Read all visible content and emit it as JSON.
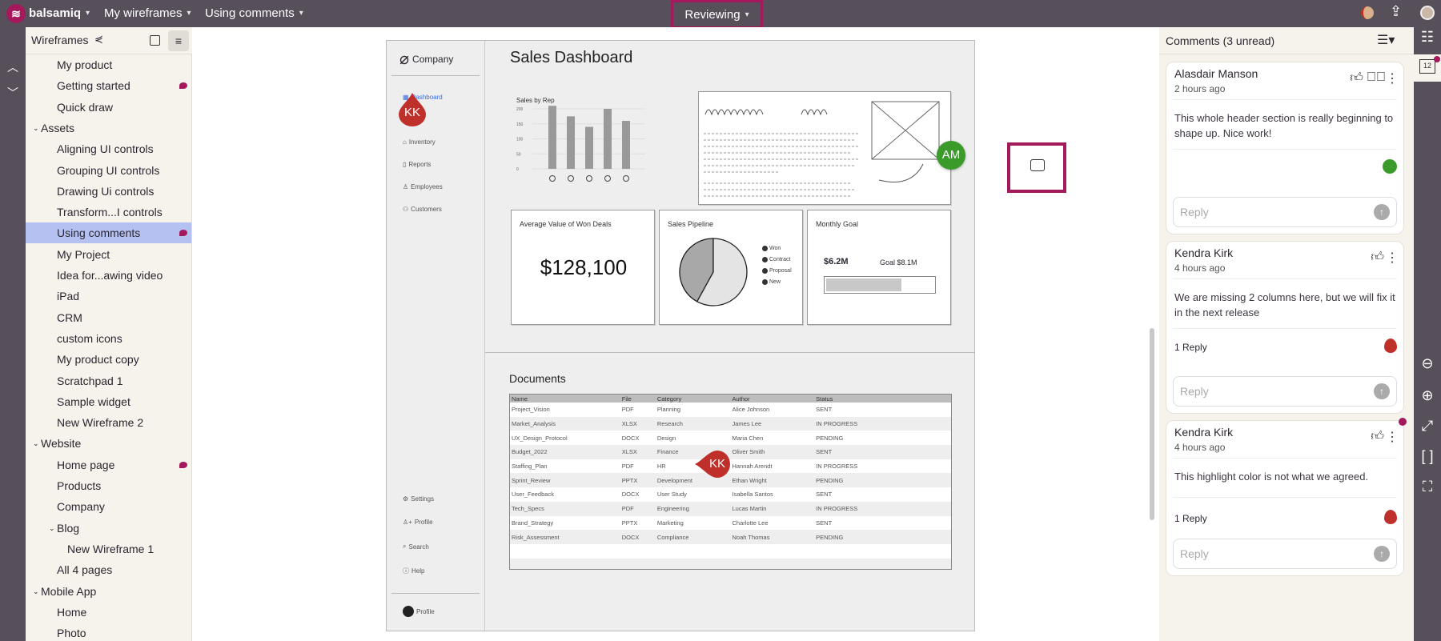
{
  "topbar": {
    "brand": "balsamiq",
    "project": "My wireframes",
    "page": "Using comments",
    "mode": "Reviewing"
  },
  "sidebar": {
    "title": "Wireframes",
    "items": [
      {
        "label": "My product",
        "level": 1
      },
      {
        "label": "Getting started",
        "level": 1,
        "comment": true
      },
      {
        "label": "Quick draw",
        "level": 1
      },
      {
        "label": "Assets",
        "level": 0,
        "group": true
      },
      {
        "label": "Aligning UI controls",
        "level": 1
      },
      {
        "label": "Grouping UI controls",
        "level": 1
      },
      {
        "label": "Drawing Ui controls",
        "level": 1
      },
      {
        "label": "Transform...I controls",
        "level": 1
      },
      {
        "label": "Using comments",
        "level": 1,
        "comment": true,
        "selected": true
      },
      {
        "label": "My Project",
        "level": 1
      },
      {
        "label": "Idea for...awing video",
        "level": 1
      },
      {
        "label": "iPad",
        "level": 1
      },
      {
        "label": "CRM",
        "level": 1
      },
      {
        "label": "custom icons",
        "level": 1
      },
      {
        "label": "My product copy",
        "level": 1
      },
      {
        "label": "Scratchpad 1",
        "level": 1
      },
      {
        "label": "Sample widget",
        "level": 1
      },
      {
        "label": "New Wireframe 2",
        "level": 1
      },
      {
        "label": "Website",
        "level": 0,
        "group": true
      },
      {
        "label": "Home page",
        "level": 1,
        "comment": true
      },
      {
        "label": "Products",
        "level": 1
      },
      {
        "label": "Company",
        "level": 1
      },
      {
        "label": "Blog",
        "level": 1,
        "group": true
      },
      {
        "label": "New Wireframe 1",
        "level": 2
      },
      {
        "label": "All 4 pages",
        "level": 1
      },
      {
        "label": "Mobile App",
        "level": 0,
        "group": true
      },
      {
        "label": "Home",
        "level": 1
      },
      {
        "label": "Photo",
        "level": 1
      }
    ]
  },
  "wireframe": {
    "company": "Company",
    "title": "Sales Dashboard",
    "nav": [
      "Dashboard",
      "Inventory",
      "Reports",
      "Employees",
      "Customers"
    ],
    "nav_bottom": [
      "Settings",
      "Profile",
      "Search",
      "Help"
    ],
    "profile": "Profile",
    "avg_title": "Average Value of Won Deals",
    "avg_value": "$128,100",
    "pipeline_title": "Sales Pipeline",
    "pipeline_legend": [
      "Won",
      "Contract",
      "Proposal",
      "New"
    ],
    "goal_title": "Monthly Goal",
    "goal_current": "$6.2M",
    "goal_target": "Goal $8.1M",
    "goal_progress": 0.7,
    "docs_title": "Documents",
    "docs_columns": [
      "Name",
      "File",
      "Category",
      "Author",
      "Status"
    ],
    "docs_rows": [
      [
        "Project_Vision",
        "PDF",
        "Planning",
        "Alice Johnson",
        "SENT"
      ],
      [
        "Market_Analysis",
        "XLSX",
        "Research",
        "James Lee",
        "IN PROGRESS"
      ],
      [
        "UX_Design_Protocol",
        "DOCX",
        "Design",
        "Maria Chen",
        "PENDING"
      ],
      [
        "Budget_2022",
        "XLSX",
        "Finance",
        "Oliver Smith",
        "SENT"
      ],
      [
        "Staffing_Plan",
        "PDF",
        "HR",
        "Hannah Arendt",
        "IN PROGRESS"
      ],
      [
        "Sprint_Review",
        "PPTX",
        "Development",
        "Ethan Wright",
        "PENDING"
      ],
      [
        "User_Feedback",
        "DOCX",
        "User Study",
        "Isabella Santos",
        "SENT"
      ],
      [
        "Tech_Specs",
        "PDF",
        "Engineering",
        "Lucas Martin",
        "IN PROGRESS"
      ],
      [
        "Brand_Strategy",
        "PPTX",
        "Marketing",
        "Charlotte Lee",
        "SENT"
      ],
      [
        "Risk_Assessment",
        "DOCX",
        "Compliance",
        "Noah Thomas",
        "PENDING"
      ]
    ],
    "pins": {
      "kk": "KK",
      "am": "AM"
    }
  },
  "chart_data": {
    "type": "bar",
    "title": "Sales by Rep",
    "values": [
      210,
      175,
      140,
      200,
      160
    ],
    "yticks": [
      "0",
      "50",
      "100",
      "150",
      "200"
    ],
    "ylim": [
      0,
      230
    ],
    "grid": true,
    "xlabels": "person-icons"
  },
  "pie": {
    "slices": [
      0.42,
      0.58
    ],
    "colors": [
      "#a8a8a8",
      "#e4e4e4"
    ]
  },
  "comments": {
    "header": "Comments (3 unread)",
    "reply_placeholder": "Reply",
    "badge": "12",
    "items": [
      {
        "author": "Alasdair Manson",
        "time": "2 hours ago",
        "text": "This whole header section is really beginning to shape up. Nice work!",
        "marker": "green"
      },
      {
        "author": "Kendra Kirk",
        "time": "4 hours ago",
        "text": "We are missing 2 columns here, but we will fix it in the next release",
        "replies": "1 Reply",
        "marker": "red"
      },
      {
        "author": "Kendra Kirk",
        "time": "4 hours ago",
        "text": "This highlight color is not what we agreed.",
        "replies": "1 Reply",
        "marker": "red",
        "unread": true
      }
    ]
  },
  "colors": {
    "accent": "#a3195b",
    "topbar": "#57505b",
    "selected": "#b4c1f1",
    "am": "#3a9a2a",
    "kk": "#c0302a"
  }
}
